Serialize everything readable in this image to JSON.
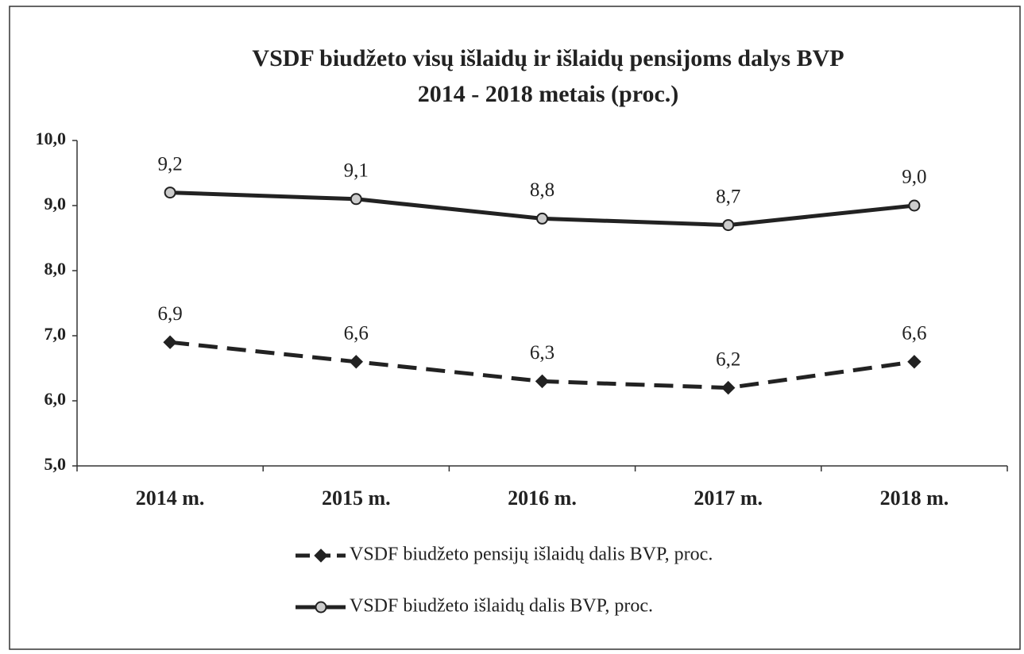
{
  "chart_data": {
    "type": "line",
    "title": "VSDF biudžeto visų išlaidų ir išlaidų pensijoms dalys BVP",
    "subtitle": "2014 - 2018 metais (proc.)",
    "categories": [
      "2014 m.",
      "2015 m.",
      "2016 m.",
      "2017 m.",
      "2018 m."
    ],
    "series": [
      {
        "name": "VSDF biudžeto pensijų išlaidų dalis BVP, proc.",
        "color": "#222222",
        "dash": true,
        "marker": "diamond",
        "values": [
          6.9,
          6.6,
          6.3,
          6.2,
          6.6
        ],
        "value_labels": [
          "6,9",
          "6,6",
          "6,3",
          "6,2",
          "6,6"
        ]
      },
      {
        "name": "VSDF biudžeto išlaidų dalis BVP, proc.",
        "color": "#222222",
        "dash": false,
        "marker": "circle",
        "values": [
          9.2,
          9.1,
          8.8,
          8.7,
          9.0
        ],
        "value_labels": [
          "9,2",
          "9,1",
          "8,8",
          "8,7",
          "9,0"
        ]
      }
    ],
    "ylim": [
      5,
      10
    ],
    "yticks": [
      {
        "value": 5,
        "label": "5,0"
      },
      {
        "value": 6,
        "label": "6,0"
      },
      {
        "value": 7,
        "label": "7,0"
      },
      {
        "value": 8,
        "label": "8,0"
      },
      {
        "value": 9,
        "label": "9,0"
      },
      {
        "value": 10,
        "label": "10,0"
      }
    ],
    "grid": false,
    "legend": "bottom"
  }
}
